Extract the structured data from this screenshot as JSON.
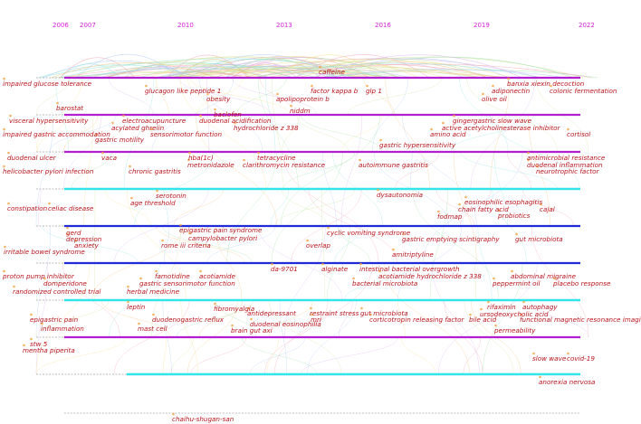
{
  "years": [
    "2006",
    "2007",
    "2010",
    "2013",
    "2016",
    "2019",
    "2022"
  ],
  "palette": {
    "magenta": "#b21fd0",
    "blue": "#1f2bd6",
    "cyan": "#33e4ea",
    "label": "#b8141c",
    "year": "#d81bd8"
  },
  "clusters": [
    {
      "color": "magenta",
      "start_year": 2006.3
    },
    {
      "color": "magenta",
      "start_year": 2006.3
    },
    {
      "color": "magenta",
      "start_year": 2006.3
    },
    {
      "color": "cyan",
      "start_year": 2006.3
    },
    {
      "color": "blue",
      "start_year": 2006.3
    },
    {
      "color": "blue",
      "start_year": 2006.3
    },
    {
      "color": "cyan",
      "start_year": 2006.3
    },
    {
      "color": "magenta",
      "start_year": 2006.3
    },
    {
      "color": "cyan",
      "start_year": 2008.2
    },
    {
      "color": "grey",
      "start_year": 2006.3
    }
  ],
  "keywords": [
    {
      "text": "caffeine"
    },
    {
      "text": "impaired glucose tolerance"
    },
    {
      "text": "banxia xiexin decoction"
    },
    {
      "text": "glucagon like peptide 1"
    },
    {
      "text": "factor kappa b"
    },
    {
      "text": "glp 1"
    },
    {
      "text": "adiponectin"
    },
    {
      "text": "colonic fermentation"
    },
    {
      "text": "obesity"
    },
    {
      "text": "apolipoprotein b"
    },
    {
      "text": "olive oil"
    },
    {
      "text": "barostat"
    },
    {
      "text": "niddm"
    },
    {
      "text": "baclofen"
    },
    {
      "text": "visceral hypersensitivity"
    },
    {
      "text": "electroacupuncture"
    },
    {
      "text": "duodenal acidification"
    },
    {
      "text": "gingergastric slow wave"
    },
    {
      "text": "acylated ghrelin"
    },
    {
      "text": "hydrochloride z 338"
    },
    {
      "text": "active acetylcholinesterase inhibitor"
    },
    {
      "text": "impaired gastric accommodation"
    },
    {
      "text": "sensorimotor function"
    },
    {
      "text": "amino acid"
    },
    {
      "text": "cortisol"
    },
    {
      "text": "gastric motility"
    },
    {
      "text": "gastric hypersensitivity"
    },
    {
      "text": "duodenal ulcer"
    },
    {
      "text": "vaca"
    },
    {
      "text": "hba(1c)"
    },
    {
      "text": "tetracycline"
    },
    {
      "text": "antimicrobial resistance"
    },
    {
      "text": "metronidazole"
    },
    {
      "text": "clarithromycin resistance"
    },
    {
      "text": "autoimmune gastritis"
    },
    {
      "text": "duodenal inflammation"
    },
    {
      "text": "helicobacter pylori infection"
    },
    {
      "text": "chronic gastritis"
    },
    {
      "text": "neurotrophic factor"
    },
    {
      "text": "dysautonomia"
    },
    {
      "text": "serotonin"
    },
    {
      "text": "eosinophilic esophagitis"
    },
    {
      "text": "age threshold"
    },
    {
      "text": "chain fatty acid"
    },
    {
      "text": "cajal"
    },
    {
      "text": "constipation"
    },
    {
      "text": "celiac disease"
    },
    {
      "text": "probiotics"
    },
    {
      "text": "fodmap"
    },
    {
      "text": "epigastric pain syndrome"
    },
    {
      "text": "gerd"
    },
    {
      "text": "cyclic vomiting syndrome"
    },
    {
      "text": "campylobacter pylori"
    },
    {
      "text": "depression"
    },
    {
      "text": "gastric emptying scintigraphy"
    },
    {
      "text": "gut microbiota"
    },
    {
      "text": "anxiety"
    },
    {
      "text": "rome iii criteria"
    },
    {
      "text": "overlap"
    },
    {
      "text": "irritable bowel syndrome"
    },
    {
      "text": "amitriptyline"
    },
    {
      "text": "da-9701"
    },
    {
      "text": "alginate"
    },
    {
      "text": "intestinal bacterial overgrowth"
    },
    {
      "text": "proton pump inhibitor"
    },
    {
      "text": "famotidine"
    },
    {
      "text": "acotiamide"
    },
    {
      "text": "acotiamide hydrochloride z 338"
    },
    {
      "text": "abdominal migraine"
    },
    {
      "text": "domperidone"
    },
    {
      "text": "gastric sensorimotor function"
    },
    {
      "text": "bacterial microbiota"
    },
    {
      "text": "peppermint oil"
    },
    {
      "text": "placebo response"
    },
    {
      "text": "randomized controlled trial"
    },
    {
      "text": "herbal medicine"
    },
    {
      "text": "leptin"
    },
    {
      "text": "fibromyalgia"
    },
    {
      "text": "restraint stress"
    },
    {
      "text": "gut microbiota"
    },
    {
      "text": "rifaximin"
    },
    {
      "text": "autophagy"
    },
    {
      "text": "epigastric pain"
    },
    {
      "text": "duodenogastric reflux"
    },
    {
      "text": "antidepressant"
    },
    {
      "text": "mri"
    },
    {
      "text": "corticotropin releasing factor"
    },
    {
      "text": "ursodeoxycholic acid"
    },
    {
      "text": "inflammation"
    },
    {
      "text": "mast cell"
    },
    {
      "text": "duodenal eosinophilia"
    },
    {
      "text": "bile acid"
    },
    {
      "text": "functional magnetic resonance imaging"
    },
    {
      "text": "brain gut axi"
    },
    {
      "text": "permeability"
    },
    {
      "text": "stw 5"
    },
    {
      "text": "mentha piperita"
    },
    {
      "text": "slow wave"
    },
    {
      "text": "covid-19"
    },
    {
      "text": "anorexia nervosa"
    },
    {
      "text": "chaihu-shugan-san"
    }
  ]
}
